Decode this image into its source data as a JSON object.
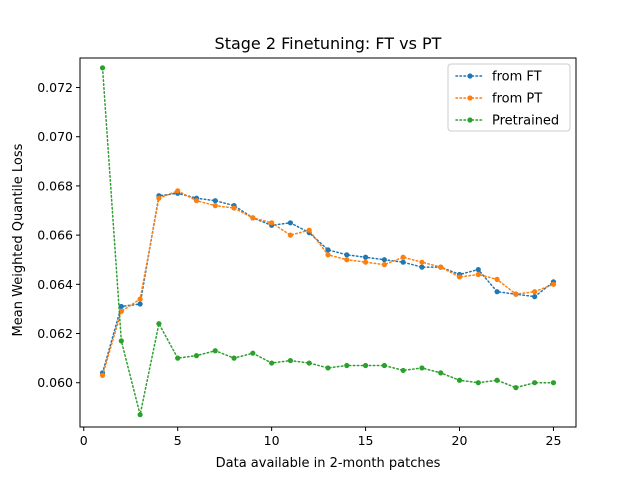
{
  "chart_data": {
    "type": "line",
    "title": "Stage 2 Finetuning: FT vs PT",
    "xlabel": "Data available in 2-month patches",
    "ylabel": "Mean Weighted Quantile Loss",
    "xlim": [
      -0.2,
      26.2
    ],
    "ylim": [
      0.0582,
      0.0732
    ],
    "x_ticks": [
      0,
      5,
      10,
      15,
      20,
      25
    ],
    "y_ticks": [
      0.06,
      0.062,
      0.064,
      0.066,
      0.068,
      0.07,
      0.072
    ],
    "y_tick_labels": [
      "0.060",
      "0.062",
      "0.064",
      "0.066",
      "0.068",
      "0.070",
      "0.072"
    ],
    "legend_position": "upper right",
    "grid": false,
    "x": [
      1,
      2,
      3,
      4,
      5,
      6,
      7,
      8,
      9,
      10,
      11,
      12,
      13,
      14,
      15,
      16,
      17,
      18,
      19,
      20,
      21,
      22,
      23,
      24,
      25
    ],
    "series": [
      {
        "name": "from FT",
        "color": "#1f77b4",
        "values": [
          0.0604,
          0.0631,
          0.0632,
          0.0676,
          0.0677,
          0.0675,
          0.0674,
          0.0672,
          0.0667,
          0.0664,
          0.0665,
          0.0661,
          0.0654,
          0.0652,
          0.0651,
          0.065,
          0.0649,
          0.0647,
          0.0647,
          0.0644,
          0.0646,
          0.0637,
          0.0636,
          0.0635,
          0.0641
        ]
      },
      {
        "name": "from PT",
        "color": "#ff7f0e",
        "values": [
          0.0603,
          0.0629,
          0.0634,
          0.0675,
          0.0678,
          0.0674,
          0.0672,
          0.0671,
          0.0667,
          0.0665,
          0.066,
          0.0662,
          0.0652,
          0.065,
          0.0649,
          0.0648,
          0.0651,
          0.0649,
          0.0647,
          0.0643,
          0.0644,
          0.0642,
          0.0636,
          0.0637,
          0.064
        ]
      },
      {
        "name": "Pretrained",
        "color": "#2ca02c",
        "values": [
          0.0728,
          0.0617,
          0.0587,
          0.0624,
          0.061,
          0.0611,
          0.0613,
          0.061,
          0.0612,
          0.0608,
          0.0609,
          0.0608,
          0.0606,
          0.0607,
          0.0607,
          0.0607,
          0.0605,
          0.0606,
          0.0604,
          0.0601,
          0.06,
          0.0601,
          0.0598,
          0.06,
          0.06
        ]
      }
    ]
  }
}
